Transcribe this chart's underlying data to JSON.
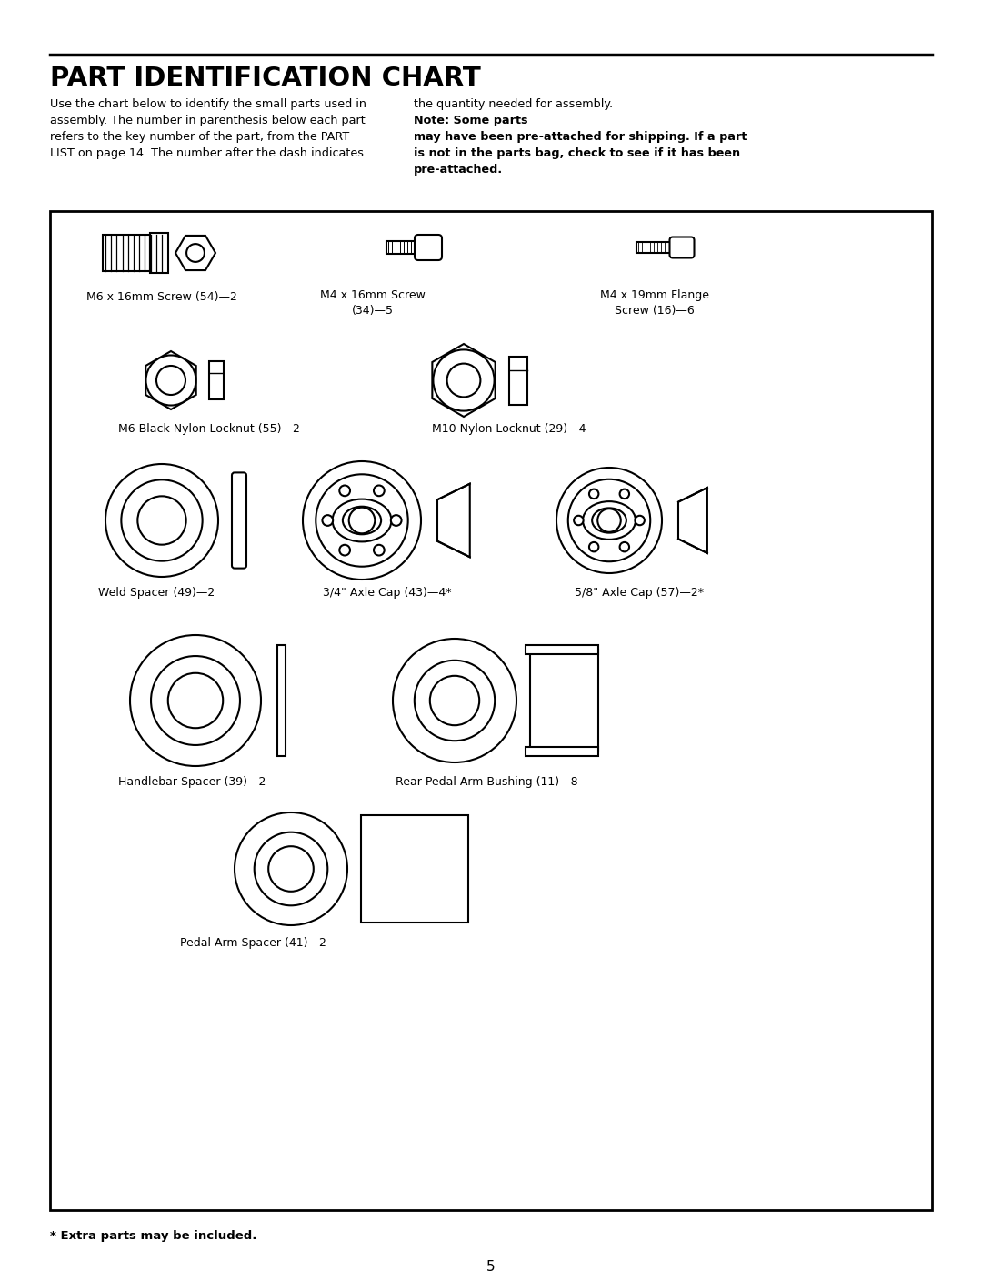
{
  "title": "PART IDENTIFICATION CHART",
  "bg_color": "#ffffff",
  "border_color": "#000000",
  "text_color": "#000000",
  "para_left_line1": "Use the chart below to identify the small parts used in",
  "para_left_line2": "assembly. The number in parenthesis below each part",
  "para_left_line3": "refers to the key number of the part, from the PART",
  "para_left_line4": "LIST on page 14. The number after the dash indicates",
  "para_right_normal": "the quantity needed for assembly. ",
  "para_right_bold": "Note: Some parts\nmay have been pre-attached for shipping. If a part\nis not in the parts bag, check to see if it has been\npre-attached.",
  "footer": "* Extra parts may be included.",
  "page_number": "5"
}
